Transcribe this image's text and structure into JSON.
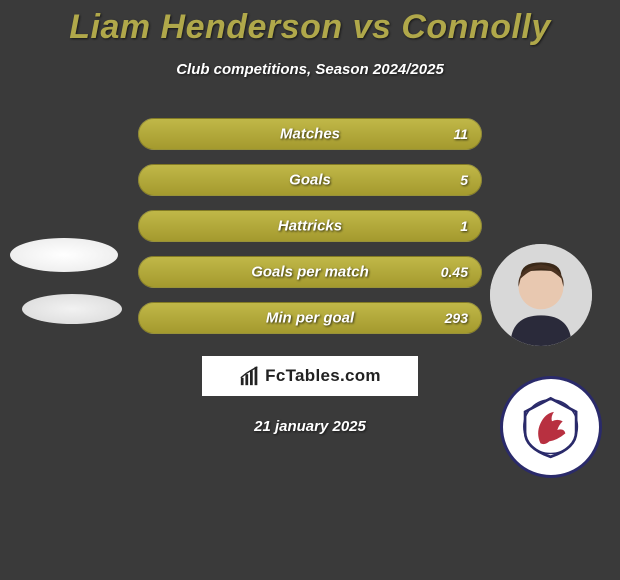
{
  "title": "Liam Henderson vs Connolly",
  "subtitle": "Club competitions, Season 2024/2025",
  "colors": {
    "title_color": "#b0a84a",
    "bar_fill_start": "#c0b848",
    "bar_fill_end": "#a49a2e",
    "bar_bg_start": "#555555",
    "bar_bg_end": "#3d3d3d",
    "page_bg": "#3a3a3a",
    "text": "#ffffff"
  },
  "stats": [
    {
      "label": "Matches",
      "right_value": "11",
      "right_fill_pct": 100
    },
    {
      "label": "Goals",
      "right_value": "5",
      "right_fill_pct": 100
    },
    {
      "label": "Hattricks",
      "right_value": "1",
      "right_fill_pct": 100
    },
    {
      "label": "Goals per match",
      "right_value": "0.45",
      "right_fill_pct": 100
    },
    {
      "label": "Min per goal",
      "right_value": "293",
      "right_fill_pct": 100
    }
  ],
  "brand": "FcTables.com",
  "date": "21 january 2025"
}
